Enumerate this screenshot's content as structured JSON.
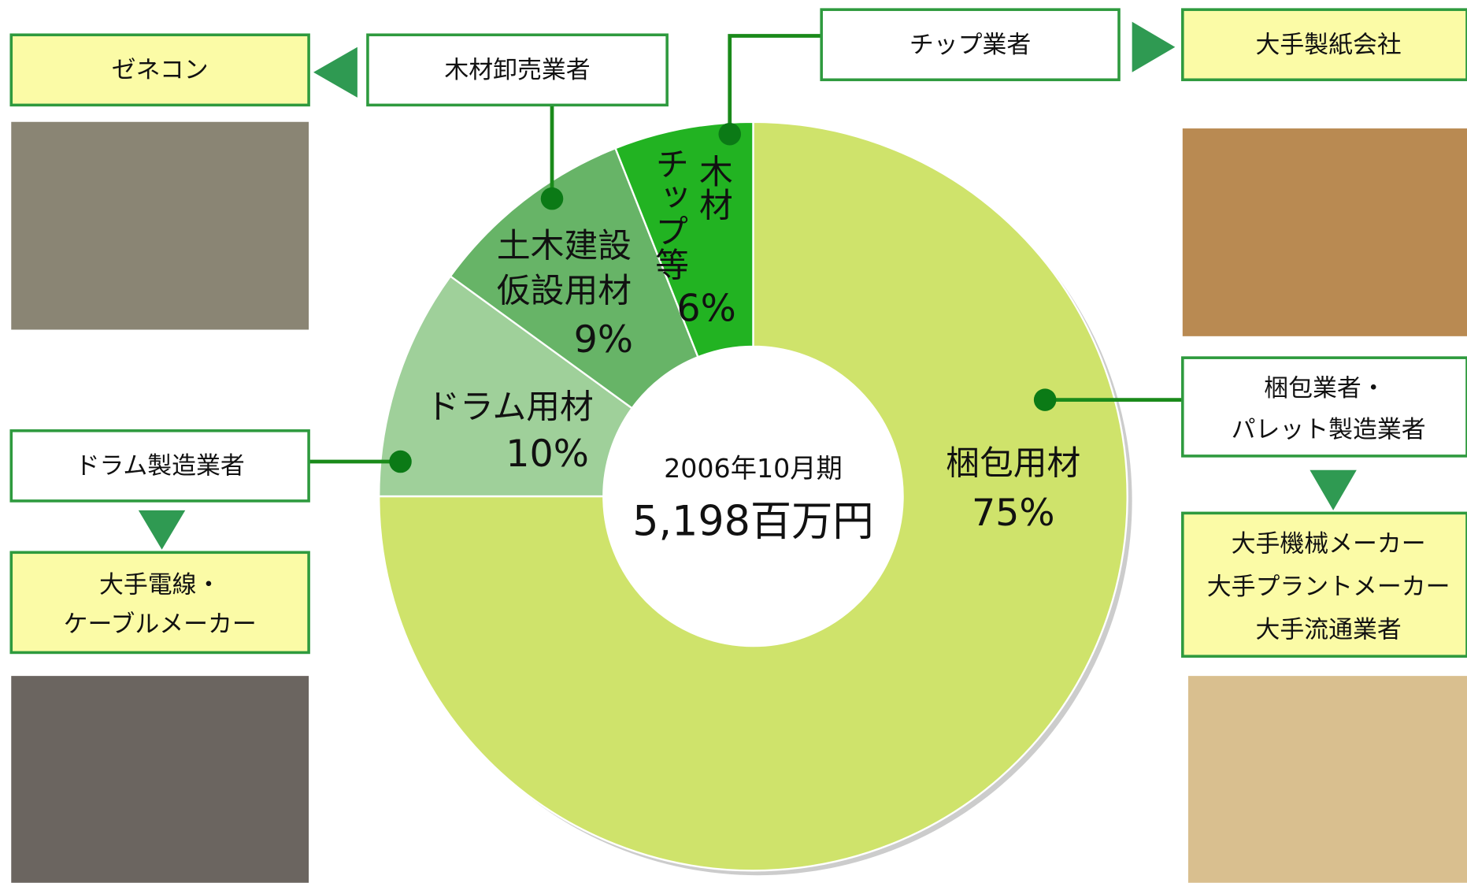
{
  "chart_data": {
    "type": "donut",
    "categories": [
      [
        "梱包用材"
      ],
      [
        "ドラム用材"
      ],
      [
        "土木建設",
        "仮設用材"
      ],
      [
        "木材",
        "チップ等"
      ]
    ],
    "values": [
      75,
      10,
      9,
      6
    ],
    "value_labels": [
      "75%",
      "10%",
      "9%",
      "6%"
    ],
    "colors": [
      "#cfe36b",
      "#9fd09a",
      "#67b467",
      "#22b322"
    ],
    "center_period": "2006年10月期",
    "center_total": "5,198百万円"
  },
  "boxes": [
    {
      "lines": [
        "ゼネコン"
      ]
    },
    {
      "lines": [
        "木材卸売業者"
      ]
    },
    {
      "lines": [
        "チップ業者"
      ]
    },
    {
      "lines": [
        "大手製紙会社"
      ]
    },
    {
      "lines": [
        "ドラム製造業者"
      ]
    },
    {
      "lines": [
        "大手電線・",
        "ケーブルメーカー"
      ]
    },
    {
      "lines": [
        "梱包業者・",
        "パレット製造業者"
      ]
    },
    {
      "lines": [
        "大手機械メーカー",
        "大手プラントメーカー",
        "大手流通業者"
      ]
    }
  ]
}
